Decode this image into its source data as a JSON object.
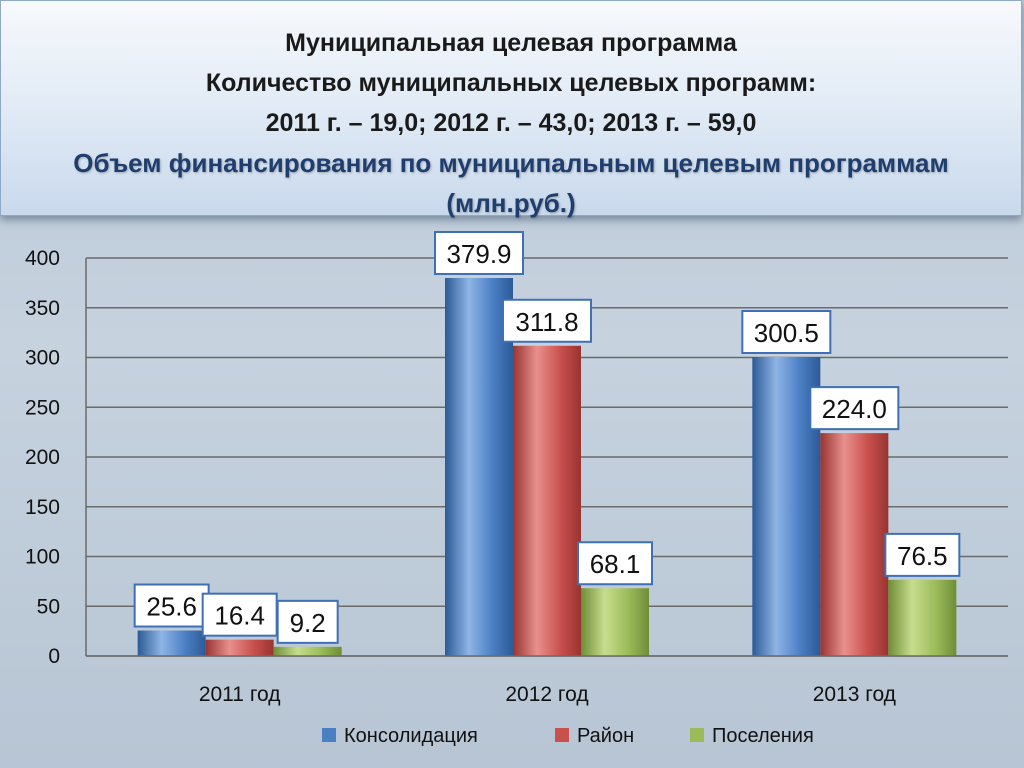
{
  "header": {
    "line1": "Муниципальная целевая программа",
    "line2": "Количество муниципальных целевых программ:",
    "line3": "2011 г. – 19,0; 2012 г. – 43,0; 2013 г. – 59,0",
    "line4": "Объем финансирования по муниципальным целевым программам",
    "line5": "(млн.руб.)"
  },
  "colors": {
    "series": [
      "#4b7fc4",
      "#c9504d",
      "#9bbb59"
    ],
    "series_dark": [
      "#2c5a96",
      "#983431",
      "#6f8d37"
    ],
    "series_light": [
      "#8fb4e6",
      "#e8908d",
      "#c6dd8e"
    ],
    "label_border": "#3f6fb5"
  },
  "chart_data": {
    "type": "bar",
    "categories": [
      "2011 год",
      "2012 год",
      "2013 год"
    ],
    "series": [
      {
        "name": "Консолидация",
        "values": [
          25.6,
          379.9,
          300.5
        ],
        "labels": [
          "25.6",
          "379.9",
          "300.5"
        ]
      },
      {
        "name": "Район",
        "values": [
          16.4,
          311.8,
          224.0
        ],
        "labels": [
          "16.4",
          "311.8",
          "224.0"
        ]
      },
      {
        "name": "Поселения",
        "values": [
          9.2,
          68.1,
          76.5
        ],
        "labels": [
          "9.2",
          "68.1",
          "76.5"
        ]
      }
    ],
    "yticks": [
      0,
      50,
      100,
      150,
      200,
      250,
      300,
      350,
      400
    ],
    "ylim": [
      0,
      400
    ],
    "grid": true,
    "legend": "bottom"
  }
}
